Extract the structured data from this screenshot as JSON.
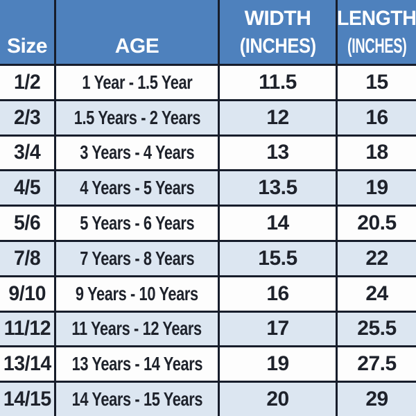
{
  "chart_data": {
    "type": "table",
    "columns": [
      {
        "label": "Size",
        "sublabel": ""
      },
      {
        "label": "AGE",
        "sublabel": ""
      },
      {
        "label": "WIDTH",
        "sublabel": "(INCHES)"
      },
      {
        "label": "LENGTH",
        "sublabel": "(INCHES)"
      }
    ],
    "rows": [
      {
        "size": "1/2",
        "age": "1 Year - 1.5 Year",
        "width_inches": "11.5",
        "length_inches": "15"
      },
      {
        "size": "2/3",
        "age": "1.5 Years - 2 Years",
        "width_inches": "12",
        "length_inches": "16"
      },
      {
        "size": "3/4",
        "age": "3 Years - 4 Years",
        "width_inches": "13",
        "length_inches": "18"
      },
      {
        "size": "4/5",
        "age": "4 Years - 5 Years",
        "width_inches": "13.5",
        "length_inches": "19"
      },
      {
        "size": "5/6",
        "age": "5 Years - 6 Years",
        "width_inches": "14",
        "length_inches": "20.5"
      },
      {
        "size": "7/8",
        "age": "7 Years - 8 Years",
        "width_inches": "15.5",
        "length_inches": "22"
      },
      {
        "size": "9/10",
        "age": "9 Years - 10 Years",
        "width_inches": "16",
        "length_inches": "24"
      },
      {
        "size": "11/12",
        "age": "11 Years - 12 Years",
        "width_inches": "17",
        "length_inches": "25.5"
      },
      {
        "size": "13/14",
        "age": "13 Years - 14 Years",
        "width_inches": "19",
        "length_inches": "27.5"
      },
      {
        "size": "14/15",
        "age": "14 Years - 15 Years",
        "width_inches": "20",
        "length_inches": "29"
      }
    ]
  },
  "colors": {
    "header_bg": "#4e81bd",
    "header_text": "#ffffff",
    "border_color": "#171d2b",
    "row_bg": "#fdfdfd",
    "row_alt_bg": "#dce6f1",
    "body_text": "#1e222b"
  }
}
